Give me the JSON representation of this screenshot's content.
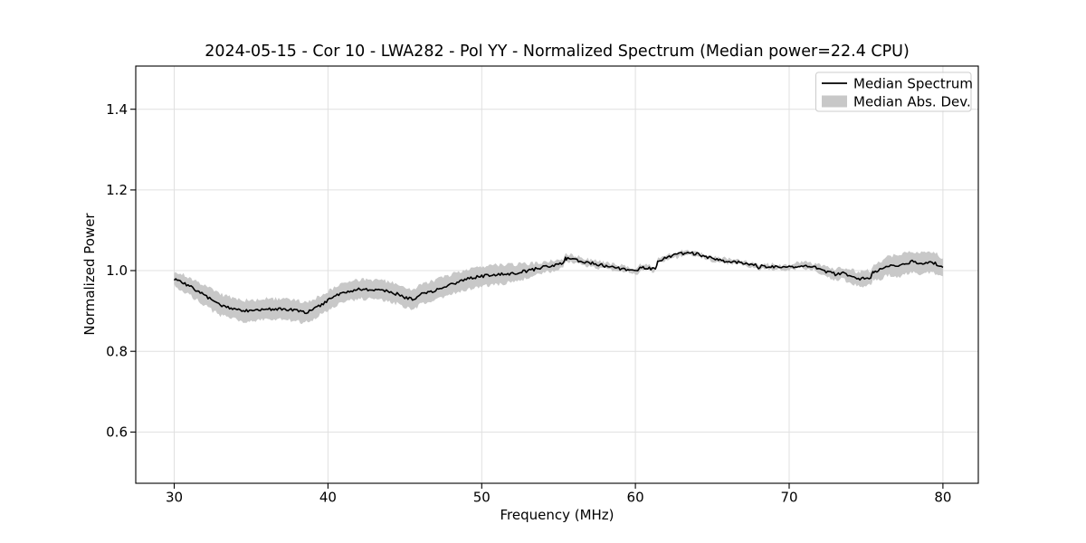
{
  "figure": {
    "title": "2024-05-15 - Cor 10 - LWA282 - Pol YY - Normalized Spectrum (Median power=22.4 CPU)",
    "date": "2024-05-15",
    "correlator": "Cor 10",
    "antenna": "LWA282",
    "polarization": "YY",
    "median_power": "22.4 CPU",
    "xlabel": "Frequency (MHz)",
    "ylabel": "Normalized Power"
  },
  "legend": {
    "position": "upper right",
    "entries": [
      {
        "label": "Median Spectrum",
        "type": "line",
        "color": "#000000"
      },
      {
        "label": "Median Abs. Dev.",
        "type": "patch",
        "color": "#c8c8c8"
      }
    ]
  },
  "colors": {
    "median_line": "#000000",
    "mad_band": "#c8c8c8",
    "grid": "#e0e0e0",
    "axes": "#000000",
    "legend_border": "#cccccc"
  },
  "chart_data": {
    "type": "line",
    "title": "2024-05-15 - Cor 10 - LWA282 - Pol YY - Normalized Spectrum (Median power=22.4 CPU)",
    "xlabel": "Frequency (MHz)",
    "ylabel": "Normalized Power",
    "xlim": [
      27.5,
      82.3
    ],
    "ylim": [
      0.473,
      1.507
    ],
    "xticks": [
      30,
      40,
      50,
      60,
      70,
      80
    ],
    "yticks": [
      0.6,
      0.8,
      1.0,
      1.2,
      1.4
    ],
    "grid": true,
    "legend_position": "upper right",
    "x": [
      30.0,
      30.5,
      31.0,
      31.5,
      32.0,
      32.5,
      33.0,
      33.5,
      34.0,
      34.5,
      35.0,
      35.5,
      36.0,
      36.5,
      37.0,
      37.5,
      38.0,
      38.5,
      39.0,
      39.5,
      40.0,
      40.5,
      41.0,
      41.5,
      42.0,
      42.5,
      43.0,
      43.5,
      44.0,
      44.5,
      45.0,
      45.5,
      46.0,
      46.5,
      47.0,
      47.5,
      48.0,
      48.5,
      49.0,
      49.5,
      50.0,
      50.5,
      51.0,
      51.5,
      52.0,
      52.5,
      53.0,
      53.5,
      54.0,
      54.5,
      55.0,
      55.3,
      55.45,
      55.5,
      56.0,
      56.5,
      57.0,
      57.5,
      58.0,
      58.5,
      59.0,
      59.5,
      60.0,
      60.15,
      60.3,
      60.5,
      61.0,
      61.3,
      61.45,
      61.5,
      62.0,
      62.5,
      63.0,
      63.5,
      64.0,
      64.5,
      65.0,
      65.5,
      66.0,
      66.5,
      67.0,
      67.5,
      67.9,
      68.0,
      68.2,
      68.5,
      69.0,
      69.5,
      70.0,
      70.5,
      71.0,
      71.5,
      72.0,
      72.5,
      73.0,
      73.5,
      74.0,
      74.5,
      75.0,
      75.3,
      75.45,
      75.5,
      76.0,
      76.5,
      77.0,
      77.5,
      78.0,
      78.5,
      79.0,
      79.5,
      80.0
    ],
    "series": [
      {
        "name": "Median Spectrum",
        "type": "line",
        "color": "#000000",
        "values": [
          0.98,
          0.971,
          0.961,
          0.95,
          0.938,
          0.926,
          0.916,
          0.909,
          0.904,
          0.901,
          0.9,
          0.902,
          0.904,
          0.904,
          0.904,
          0.903,
          0.9,
          0.896,
          0.903,
          0.914,
          0.926,
          0.937,
          0.945,
          0.95,
          0.953,
          0.954,
          0.953,
          0.951,
          0.948,
          0.942,
          0.934,
          0.929,
          0.94,
          0.946,
          0.952,
          0.958,
          0.965,
          0.972,
          0.978,
          0.983,
          0.986,
          0.988,
          0.99,
          0.991,
          0.993,
          0.996,
          1.0,
          1.004,
          1.008,
          1.012,
          1.016,
          1.016,
          1.031,
          1.03,
          1.029,
          1.023,
          1.019,
          1.016,
          1.012,
          1.008,
          1.005,
          1.002,
          1.0,
          0.999,
          1.009,
          1.007,
          1.005,
          1.004,
          1.022,
          1.024,
          1.033,
          1.037,
          1.042,
          1.044,
          1.041,
          1.036,
          1.03,
          1.026,
          1.023,
          1.021,
          1.019,
          1.016,
          1.014,
          1.002,
          1.012,
          1.011,
          1.01,
          1.008,
          1.008,
          1.012,
          1.014,
          1.01,
          1.004,
          0.996,
          0.991,
          0.994,
          0.986,
          0.979,
          0.981,
          0.982,
          0.996,
          0.998,
          1.002,
          1.014,
          1.01,
          1.018,
          1.022,
          1.016,
          1.021,
          1.018,
          1.008
        ]
      },
      {
        "name": "Median Abs. Dev.",
        "type": "band",
        "color": "#c8c8c8",
        "center_series": "Median Spectrum",
        "half_width": [
          0.018,
          0.02,
          0.022,
          0.023,
          0.024,
          0.026,
          0.026,
          0.026,
          0.026,
          0.026,
          0.026,
          0.026,
          0.026,
          0.026,
          0.026,
          0.026,
          0.026,
          0.026,
          0.025,
          0.024,
          0.023,
          0.023,
          0.023,
          0.023,
          0.024,
          0.024,
          0.024,
          0.024,
          0.024,
          0.024,
          0.025,
          0.025,
          0.025,
          0.025,
          0.025,
          0.025,
          0.025,
          0.025,
          0.025,
          0.025,
          0.025,
          0.024,
          0.024,
          0.023,
          0.022,
          0.02,
          0.017,
          0.015,
          0.014,
          0.013,
          0.012,
          0.011,
          0.01,
          0.01,
          0.009,
          0.008,
          0.008,
          0.008,
          0.008,
          0.008,
          0.008,
          0.007,
          0.007,
          0.007,
          0.007,
          0.007,
          0.006,
          0.006,
          0.006,
          0.006,
          0.006,
          0.006,
          0.006,
          0.006,
          0.006,
          0.006,
          0.006,
          0.006,
          0.006,
          0.006,
          0.006,
          0.006,
          0.006,
          0.006,
          0.006,
          0.006,
          0.006,
          0.006,
          0.006,
          0.007,
          0.007,
          0.007,
          0.009,
          0.011,
          0.013,
          0.015,
          0.017,
          0.018,
          0.019,
          0.019,
          0.02,
          0.02,
          0.022,
          0.024,
          0.026,
          0.027,
          0.027,
          0.026,
          0.026,
          0.025,
          0.022
        ]
      }
    ],
    "render_hints": {
      "noise_amplitude_line": 0.0038,
      "noise_amplitude_band": 0.005,
      "sample_step_mhz": 0.1
    }
  }
}
